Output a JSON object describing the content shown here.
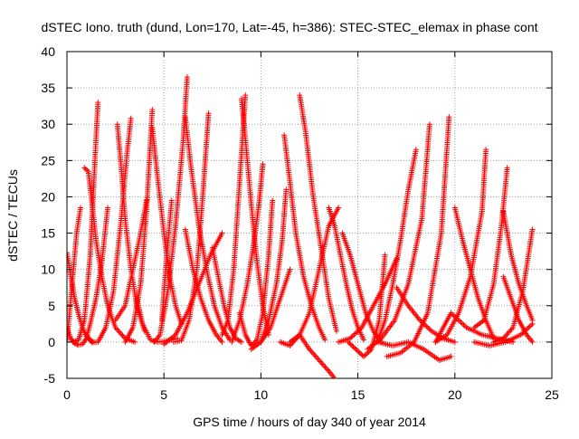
{
  "chart_data": {
    "type": "scatter",
    "title": "dSTEC Iono. truth (dund, Lon=170, Lat=-45, h=386): STEC-STEC_elemax in phase cont",
    "xlabel": "GPS time / hours of day 340 of year 2014",
    "ylabel": "dSTEC  / TECUs",
    "xlim": [
      0,
      25
    ],
    "ylim": [
      -5,
      40
    ],
    "xticks": [
      0,
      5,
      10,
      15,
      20,
      25
    ],
    "yticks": [
      -5,
      0,
      5,
      10,
      15,
      20,
      25,
      30,
      35,
      40
    ],
    "grid": true,
    "marker": "+",
    "color": "#ff0000",
    "series": [
      {
        "x": [
          0.0,
          0.2,
          0.4,
          0.6,
          0.8,
          1.0,
          1.2,
          1.4
        ],
        "y": [
          12.3,
          9.0,
          6.0,
          3.8,
          2.0,
          0.8,
          0.2,
          0.0
        ]
      },
      {
        "x": [
          0.0,
          0.2,
          0.4,
          0.6,
          0.8,
          1.0,
          1.2,
          1.5,
          1.8,
          2.1
        ],
        "y": [
          2.0,
          0.5,
          -0.2,
          -0.4,
          -0.3,
          0.5,
          2.5,
          6.0,
          11.0,
          18.5
        ]
      },
      {
        "x": [
          0.0,
          0.1,
          0.3,
          0.5,
          0.7
        ],
        "y": [
          0.0,
          3.0,
          9.0,
          15.0,
          18.5
        ]
      },
      {
        "x": [
          0.9,
          1.1,
          1.3,
          1.5,
          1.8,
          2.1,
          2.5,
          3.0,
          3.5
        ],
        "y": [
          24.0,
          23.5,
          19.0,
          14.0,
          9.0,
          5.0,
          2.0,
          0.5,
          0.0
        ]
      },
      {
        "x": [
          0.3,
          0.6,
          0.9,
          1.2,
          1.5,
          1.6
        ],
        "y": [
          0.0,
          0.3,
          3.0,
          12.0,
          28.0,
          33.0
        ]
      },
      {
        "x": [
          1.0,
          1.3,
          1.6,
          2.0,
          2.4,
          2.8,
          3.1,
          3.3
        ],
        "y": [
          1.0,
          -0.1,
          0.0,
          2.0,
          7.0,
          17.0,
          26.0,
          30.8
        ]
      },
      {
        "x": [
          2.6,
          2.8,
          3.0,
          3.3,
          3.6,
          4.0
        ],
        "y": [
          30.0,
          24.0,
          17.0,
          10.0,
          5.0,
          1.5
        ]
      },
      {
        "x": [
          2.5,
          3.0,
          3.4,
          3.8,
          4.1
        ],
        "y": [
          3.0,
          5.0,
          10.0,
          15.0,
          19.5
        ]
      },
      {
        "x": [
          3.0,
          3.4,
          3.8,
          4.1,
          4.4
        ],
        "y": [
          0.0,
          2.0,
          8.0,
          18.0,
          32.0
        ]
      },
      {
        "x": [
          3.6,
          3.9,
          4.3,
          4.7,
          5.2,
          5.7
        ],
        "y": [
          6.0,
          2.5,
          0.3,
          0.0,
          0.2,
          0.5
        ]
      },
      {
        "x": [
          4.4,
          4.7,
          5.0,
          5.3,
          5.6,
          5.9
        ],
        "y": [
          29.5,
          22.0,
          15.0,
          9.0,
          5.0,
          2.5
        ]
      },
      {
        "x": [
          4.5,
          4.8,
          5.2,
          5.6,
          6.0,
          6.2
        ],
        "y": [
          0.0,
          1.0,
          7.0,
          16.0,
          28.0,
          36.5
        ]
      },
      {
        "x": [
          4.9,
          5.0,
          5.2,
          5.4
        ],
        "y": [
          3.0,
          7.0,
          13.5,
          19.5
        ]
      },
      {
        "x": [
          6.1,
          6.4,
          6.8,
          7.2,
          7.6,
          8.0,
          8.4
        ],
        "y": [
          31.0,
          24.0,
          16.0,
          10.0,
          5.0,
          2.0,
          0.3
        ]
      },
      {
        "x": [
          5.5,
          5.9,
          6.3,
          6.7,
          7.0,
          7.3
        ],
        "y": [
          0.0,
          0.2,
          3.0,
          10.0,
          20.0,
          31.5
        ]
      },
      {
        "x": [
          5.0,
          5.6,
          6.2,
          6.8,
          7.4,
          8.0
        ],
        "y": [
          -0.3,
          1.0,
          4.0,
          8.0,
          12.0,
          15.0
        ]
      },
      {
        "x": [
          6.1,
          6.5,
          6.9,
          7.3,
          7.7,
          8.0
        ],
        "y": [
          15.5,
          10.0,
          6.0,
          3.0,
          1.0,
          0.0
        ]
      },
      {
        "x": [
          7.5,
          7.8,
          8.1,
          8.4,
          8.7,
          9.0
        ],
        "y": [
          13.0,
          9.0,
          5.0,
          2.0,
          0.5,
          0.0
        ]
      },
      {
        "x": [
          8.0,
          8.3,
          8.6,
          8.9,
          9.2
        ],
        "y": [
          1.0,
          3.0,
          10.0,
          22.0,
          34.0
        ]
      },
      {
        "x": [
          9.0,
          9.2,
          9.5,
          9.8,
          10.1,
          10.4
        ],
        "y": [
          33.5,
          28.0,
          19.0,
          11.0,
          5.0,
          1.0
        ]
      },
      {
        "x": [
          8.9,
          9.2,
          9.5,
          9.8,
          10.1,
          10.4,
          10.6
        ],
        "y": [
          4.0,
          1.0,
          -0.5,
          0.3,
          4.0,
          12.0,
          19.5
        ]
      },
      {
        "x": [
          8.5,
          8.9,
          9.3,
          9.6,
          9.9,
          10.1
        ],
        "y": [
          0.0,
          3.0,
          8.0,
          13.0,
          19.0,
          24.5
        ]
      },
      {
        "x": [
          9.5,
          10.0,
          10.5,
          11.0,
          11.5
        ],
        "y": [
          -1.0,
          0.0,
          2.0,
          6.0,
          10.0
        ]
      },
      {
        "x": [
          10.0,
          10.4,
          10.8,
          11.1,
          11.3
        ],
        "y": [
          0.0,
          3.0,
          8.0,
          14.0,
          21.0
        ]
      },
      {
        "x": [
          11.2,
          11.5,
          11.8,
          12.2,
          12.6,
          13.0,
          13.3
        ],
        "y": [
          28.5,
          22.0,
          15.0,
          9.0,
          5.0,
          2.0,
          0.3
        ]
      },
      {
        "x": [
          12.0,
          12.3,
          12.7,
          13.1,
          13.5,
          13.9
        ],
        "y": [
          34.0,
          29.0,
          20.0,
          13.0,
          6.0,
          1.5
        ]
      },
      {
        "x": [
          11.5,
          12.0,
          12.5,
          13.0,
          13.5,
          13.8
        ],
        "y": [
          0.0,
          1.0,
          -1.0,
          -2.5,
          -4.0,
          -5.0
        ]
      },
      {
        "x": [
          11.0,
          11.5,
          12.0,
          12.5,
          13.0,
          13.5,
          14.0
        ],
        "y": [
          0.0,
          -0.5,
          1.0,
          4.0,
          10.0,
          16.0,
          18.5
        ]
      },
      {
        "x": [
          13.5,
          13.8,
          14.1,
          14.4,
          14.7,
          15.0,
          15.3
        ],
        "y": [
          18.5,
          16.0,
          12.0,
          8.0,
          4.5,
          2.0,
          0.3
        ]
      },
      {
        "x": [
          14.2,
          14.6,
          15.0,
          15.4,
          15.8,
          16.2
        ],
        "y": [
          15.0,
          12.0,
          8.0,
          4.0,
          1.5,
          0.0
        ]
      },
      {
        "x": [
          14.5,
          14.9,
          15.3,
          15.7,
          16.1,
          16.4
        ],
        "y": [
          0.0,
          -1.0,
          -2.0,
          -1.0,
          3.0,
          12.0
        ]
      },
      {
        "x": [
          14.0,
          14.6,
          15.2,
          15.8,
          16.4,
          17.0
        ],
        "y": [
          0.0,
          0.5,
          2.0,
          5.0,
          8.0,
          11.5
        ]
      },
      {
        "x": [
          16.0,
          16.4,
          16.8,
          17.2,
          17.6,
          18.0
        ],
        "y": [
          0.0,
          3.0,
          8.0,
          14.0,
          21.0,
          26.5
        ]
      },
      {
        "x": [
          15.5,
          16.2,
          16.9,
          17.6,
          18.3,
          18.7
        ],
        "y": [
          -1.0,
          0.5,
          3.0,
          8.0,
          17.0,
          30.0
        ]
      },
      {
        "x": [
          16.5,
          17.2,
          17.9,
          18.6,
          19.3,
          19.7
        ],
        "y": [
          -2.0,
          -1.5,
          0.0,
          4.0,
          15.0,
          31.0
        ]
      },
      {
        "x": [
          16.0,
          16.8,
          17.6,
          18.4,
          19.2,
          19.8
        ],
        "y": [
          0.0,
          -0.5,
          0.0,
          -1.0,
          -2.5,
          -2.0
        ]
      },
      {
        "x": [
          17.0,
          17.6,
          18.2,
          18.8,
          19.4,
          20.0
        ],
        "y": [
          7.5,
          5.0,
          3.0,
          1.5,
          0.5,
          0.0
        ]
      },
      {
        "x": [
          19.0,
          19.8,
          20.6,
          21.4,
          22.2,
          23.0
        ],
        "y": [
          0.0,
          4.0,
          2.0,
          1.0,
          0.5,
          0.0
        ]
      },
      {
        "x": [
          20.0,
          20.4,
          20.8,
          21.2,
          21.6,
          22.0
        ],
        "y": [
          18.5,
          14.0,
          10.0,
          6.0,
          3.0,
          0.5
        ]
      },
      {
        "x": [
          19.0,
          19.6,
          20.2,
          20.8,
          21.4,
          21.6
        ],
        "y": [
          0.0,
          1.0,
          4.0,
          9.0,
          18.0,
          26.5
        ]
      },
      {
        "x": [
          21.0,
          21.5,
          22.0,
          22.4,
          22.7
        ],
        "y": [
          2.0,
          3.0,
          8.0,
          16.0,
          24.0
        ]
      },
      {
        "x": [
          22.5,
          22.9,
          23.3,
          23.7,
          24.0
        ],
        "y": [
          18.0,
          12.0,
          8.0,
          5.0,
          3.0
        ]
      },
      {
        "x": [
          22.5,
          22.9,
          23.3,
          23.7,
          24.0
        ],
        "y": [
          9.0,
          6.0,
          3.0,
          1.0,
          0.0
        ]
      },
      {
        "x": [
          22.0,
          22.5,
          23.0,
          23.5,
          24.0
        ],
        "y": [
          0.0,
          0.5,
          2.0,
          7.0,
          15.5
        ]
      },
      {
        "x": [
          21.0,
          21.8,
          22.6,
          23.4,
          24.0
        ],
        "y": [
          0.0,
          -0.5,
          0.0,
          1.0,
          2.5
        ]
      }
    ]
  }
}
